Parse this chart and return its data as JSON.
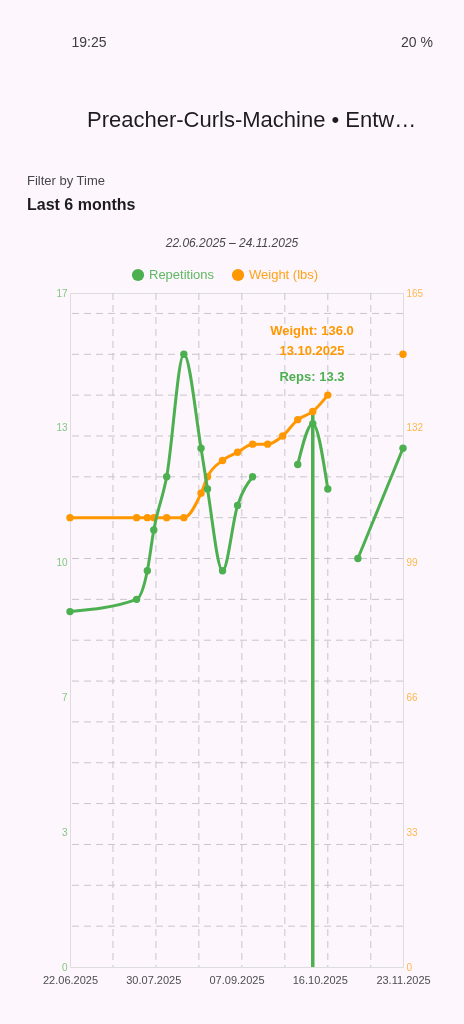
{
  "chart_data": {
    "type": "line",
    "title": "Preacher-Curls-Machine • Entw…",
    "subtitle": "22.06.2025 – 24.11.2025",
    "x": [
      "2025-06-22",
      "2025-07-23",
      "2025-07-28",
      "2025-07-31",
      "2025-08-06",
      "2025-08-14",
      "2025-08-22",
      "2025-08-25",
      "2025-09-01",
      "2025-09-08",
      "2025-09-15",
      "2025-09-22",
      "2025-09-29",
      "2025-10-06",
      "2025-10-13",
      "2025-10-20",
      "2025-10-27",
      "2025-11-03",
      "2025-11-24"
    ],
    "series": [
      {
        "name": "Repetitions",
        "color": "#4caf50",
        "values": [
          8.7,
          9.0,
          9.7,
          10.7,
          12.0,
          15.0,
          12.7,
          11.7,
          9.7,
          11.3,
          12.0,
          null,
          null,
          12.3,
          13.3,
          11.7,
          null,
          10.0,
          12.7
        ]
      },
      {
        "name": "Weight (lbs)",
        "color": "#ff9800",
        "axis": "y2",
        "values": [
          110,
          110,
          110,
          110,
          110,
          110,
          116,
          120,
          124,
          126,
          128,
          128,
          130,
          134,
          136,
          140,
          null,
          null,
          150
        ]
      }
    ],
    "xlim": [
      "2025-06-22",
      "2025-11-24"
    ],
    "xticks": [
      {
        "value": "2025-06-22",
        "label": "22.06.2025"
      },
      {
        "value": "2025-07-12",
        "label": null
      },
      {
        "value": "2025-07-30T18:00",
        "label": "30.07.2025"
      },
      {
        "value": "2025-08-01",
        "label": null
      },
      {
        "value": "2025-08-21",
        "label": null
      },
      {
        "value": "2025-09-07T12:00",
        "label": "07.09.2025"
      },
      {
        "value": "2025-09-10",
        "label": null
      },
      {
        "value": "2025-09-30",
        "label": null
      },
      {
        "value": "2025-10-16T06:00",
        "label": "16.10.2025"
      },
      {
        "value": "2025-10-20",
        "label": null
      },
      {
        "value": "2025-11-09",
        "label": null
      },
      {
        "value": "2025-11-24",
        "label": "23.11.2025"
      }
    ],
    "ylim": [
      0,
      16.5
    ],
    "yticks": [
      0,
      {
        "value": 1,
        "label": null
      },
      {
        "value": 2,
        "label": null
      },
      {
        "value": 3,
        "label": null
      },
      {
        "value": 3.3,
        "label": "3"
      },
      {
        "value": 4,
        "label": null
      },
      {
        "value": 5,
        "label": null
      },
      {
        "value": 6,
        "label": null
      },
      {
        "value": 6.6,
        "label": "7"
      },
      {
        "value": 7,
        "label": null
      },
      {
        "value": 8,
        "label": null
      },
      {
        "value": 9,
        "label": null
      },
      {
        "value": 9.9,
        "label": "10"
      },
      {
        "value": 10,
        "label": null
      },
      {
        "value": 11,
        "label": null
      },
      {
        "value": 12,
        "label": null
      },
      {
        "value": 13,
        "label": null
      },
      {
        "value": 13.2,
        "label": "13"
      },
      {
        "value": 14,
        "label": null
      },
      {
        "value": 15,
        "label": null
      },
      {
        "value": 16,
        "label": null
      },
      {
        "value": 16.5,
        "label": "17"
      }
    ],
    "y2lim": [
      0,
      165
    ],
    "y2ticks": [
      0,
      33,
      66,
      99,
      132,
      165
    ],
    "grid": true,
    "legend": "top",
    "marker": "circle",
    "line_style": "solid",
    "ref_lines": [
      {
        "axis": "x",
        "value": "2025-10-13",
        "color": "#4caf50"
      }
    ],
    "annotations": [
      "Weight: 136.0",
      "13.10.2025",
      "Reps: 13.3",
      "19:25",
      "20 %",
      "Filter by Time",
      "Last 6 months"
    ]
  }
}
